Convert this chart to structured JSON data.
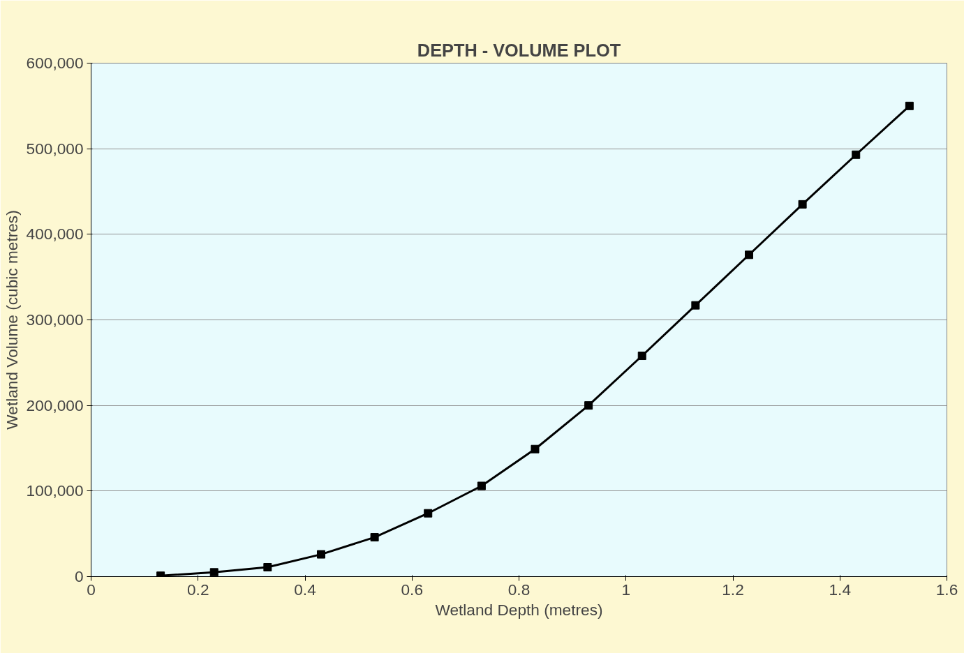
{
  "chart_data": {
    "type": "line",
    "title": "DEPTH - VOLUME PLOT",
    "xlabel": "Wetland Depth (metres)",
    "ylabel": "Wetland Volume (cubic metres)",
    "x": [
      0.13,
      0.23,
      0.33,
      0.43,
      0.53,
      0.63,
      0.73,
      0.83,
      0.93,
      1.03,
      1.13,
      1.23,
      1.33,
      1.43,
      1.53
    ],
    "series": [
      {
        "color": "#000000",
        "values": [
          1000,
          5000,
          11000,
          26000,
          46000,
          74000,
          106000,
          149000,
          200000,
          258000,
          317000,
          376000,
          435000,
          493000,
          550000
        ]
      }
    ],
    "xlim": [
      0,
      1.6
    ],
    "xticks": [
      0,
      0.2,
      0.4,
      0.6,
      0.8,
      1,
      1.2,
      1.4,
      1.6
    ],
    "ylim": [
      0,
      600000
    ],
    "yticks": [
      {
        "value": 0,
        "label": "0"
      },
      {
        "value": 100000,
        "label": "100,000"
      },
      {
        "value": 200000,
        "label": "200,000"
      },
      {
        "value": 300000,
        "label": "300,000"
      },
      {
        "value": 400000,
        "label": "400,000"
      },
      {
        "value": 500000,
        "label": "500,000"
      },
      {
        "value": 600000,
        "label": "600,000"
      }
    ],
    "grid": "y",
    "marker": "square",
    "line_style": "solid"
  }
}
